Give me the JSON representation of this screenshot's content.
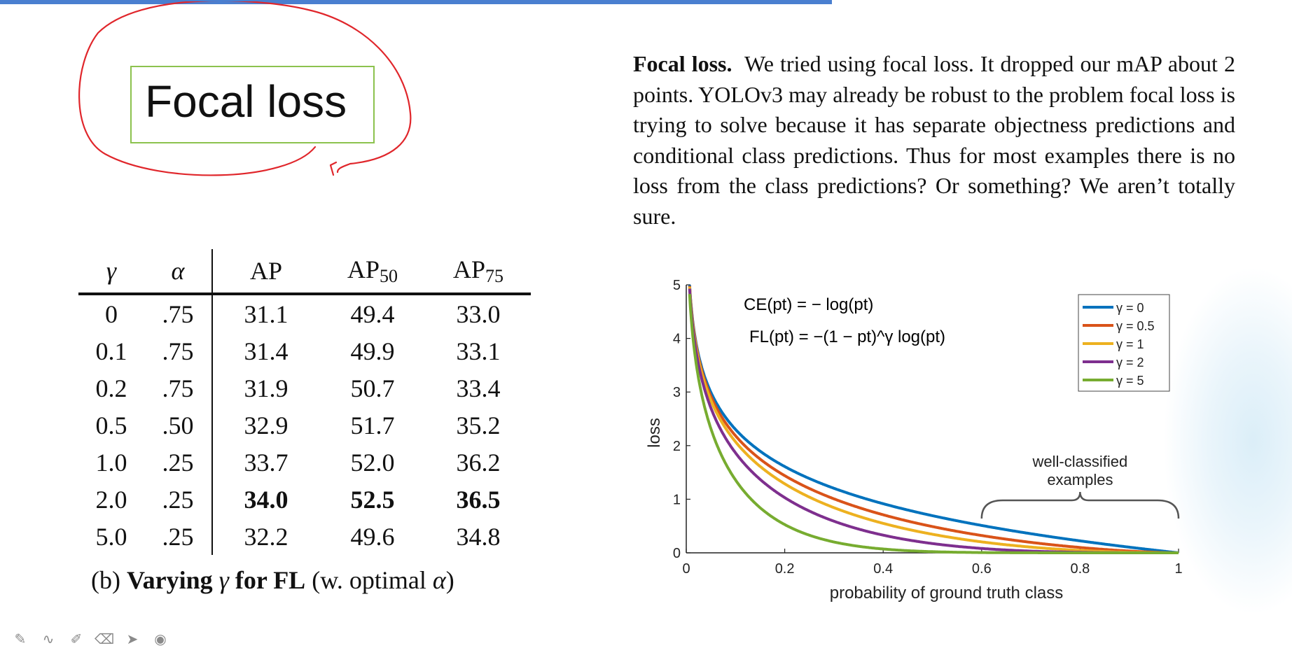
{
  "slide_title": "Focal loss",
  "paragraph": {
    "lead": "Focal loss.",
    "body": "We tried using focal loss. It dropped our mAP about 2 points. YOLOv3 may already be robust to the problem focal loss is trying to solve because it has separate objectness predictions and conditional class predictions. Thus for most examples there is no loss from the class predictions? Or something? We aren’t totally sure."
  },
  "table": {
    "headers": [
      "γ",
      "α",
      "AP",
      "AP",
      "AP"
    ],
    "header_subscripts": [
      "",
      "",
      "",
      "50",
      "75"
    ],
    "rows": [
      [
        "0",
        ".75",
        "31.1",
        "49.4",
        "33.0"
      ],
      [
        "0.1",
        ".75",
        "31.4",
        "49.9",
        "33.1"
      ],
      [
        "0.2",
        ".75",
        "31.9",
        "50.7",
        "33.4"
      ],
      [
        "0.5",
        ".50",
        "32.9",
        "51.7",
        "35.2"
      ],
      [
        "1.0",
        ".25",
        "33.7",
        "52.0",
        "36.2"
      ],
      [
        "2.0",
        ".25",
        "34.0",
        "52.5",
        "36.5"
      ],
      [
        "5.0",
        ".25",
        "32.2",
        "49.6",
        "34.8"
      ]
    ],
    "bold_row_index": 5,
    "caption": {
      "prefix": "(b)",
      "bold_1": "Varying",
      "gamma": "γ",
      "bold_2": "for FL",
      "rest_1": "(w. optimal",
      "alpha": "α",
      "rest_2": ")"
    }
  },
  "chart_data": {
    "type": "line",
    "xlabel": "probability of ground truth class",
    "ylabel": "loss",
    "xlim": [
      0,
      1
    ],
    "ylim": [
      0,
      5
    ],
    "x_ticks": [
      "0",
      "0.2",
      "0.4",
      "0.6",
      "0.8",
      "1"
    ],
    "y_ticks": [
      "0",
      "1",
      "2",
      "3",
      "4",
      "5"
    ],
    "formula_ce": "CE(pt) = − log(pt)",
    "formula_fl": "FL(pt) = −(1 − pt)^γ log(pt)",
    "annotation": "well-classified examples",
    "annotation_range": [
      0.6,
      1.0
    ],
    "legend_position": "top-right",
    "series": [
      {
        "name": "γ = 0",
        "gamma": 0,
        "color": "#0072BD"
      },
      {
        "name": "γ = 0.5",
        "gamma": 0.5,
        "color": "#D95319"
      },
      {
        "name": "γ = 1",
        "gamma": 1,
        "color": "#EDB120"
      },
      {
        "name": "γ = 2",
        "gamma": 2,
        "color": "#7E2F8E"
      },
      {
        "name": "γ = 5",
        "gamma": 5,
        "color": "#77AC30"
      }
    ]
  },
  "toolbar": {
    "tools": [
      {
        "icon": "pen-icon",
        "glyph": "✎"
      },
      {
        "icon": "freehand-icon",
        "glyph": "∿"
      },
      {
        "icon": "highlighter-icon",
        "glyph": "✐"
      },
      {
        "icon": "eraser-icon",
        "glyph": "⌫"
      },
      {
        "icon": "pointer-icon",
        "glyph": "➤"
      },
      {
        "icon": "laser-icon",
        "glyph": "◉"
      }
    ]
  },
  "colors": {
    "top_bar": "#4a7fd0",
    "title_box": "#8cc24e",
    "ink_annotation": "#e0262b"
  }
}
